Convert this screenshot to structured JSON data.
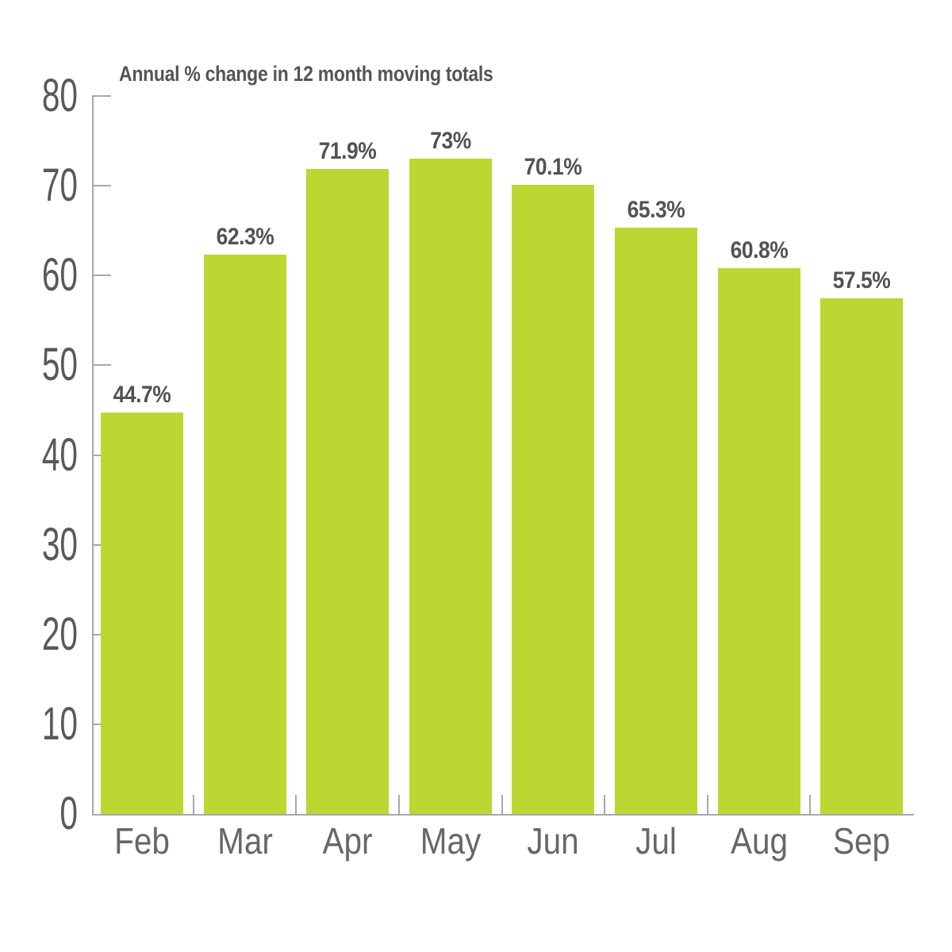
{
  "chart_data": {
    "type": "bar",
    "title": "Annual % change in 12 month moving totals",
    "categories": [
      "Feb",
      "Mar",
      "Apr",
      "May",
      "Jun",
      "Jul",
      "Aug",
      "Sep"
    ],
    "values": [
      44.7,
      62.3,
      71.9,
      73,
      70.1,
      65.3,
      60.8,
      57.5
    ],
    "value_labels": [
      "44.7%",
      "62.3%",
      "71.9%",
      "73%",
      "70.1%",
      "65.3%",
      "60.8%",
      "57.5%"
    ],
    "xlabel": "",
    "ylabel": "",
    "ylim": [
      0,
      80
    ],
    "yticks": [
      "0",
      "10",
      "20",
      "30",
      "40",
      "50",
      "60",
      "70",
      "80"
    ],
    "grid": "off",
    "legend": "none",
    "colors": {
      "bar": "#bcd732",
      "axis": "#a6a8ab",
      "title_text": "#545456",
      "value_label_text": "#515254",
      "y_tick_text": "#58595b",
      "x_tick_text": "#666769"
    }
  }
}
